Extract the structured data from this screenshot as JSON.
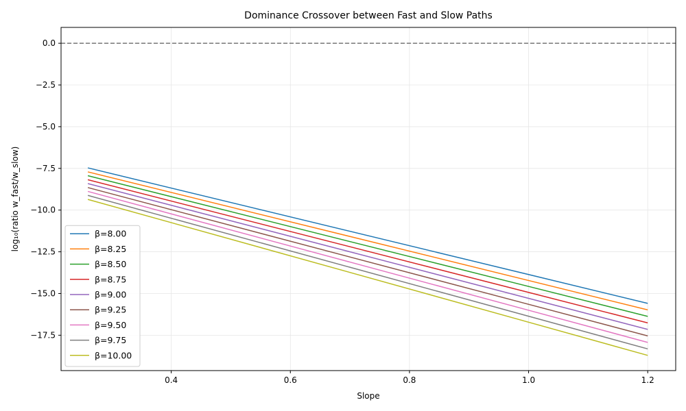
{
  "chart_data": {
    "type": "line",
    "title": "Dominance Crossover between Fast and Slow Paths",
    "xlabel": "Slope",
    "ylabel": "log₁₀(ratio w_fast/w_slow)",
    "xlim": [
      0.215,
      1.247
    ],
    "ylim": [
      -19.62,
      0.95
    ],
    "xticks": [
      0.4,
      0.6,
      0.8,
      1.0,
      1.2
    ],
    "xtick_labels": [
      "0.4",
      "0.6",
      "0.8",
      "1.0",
      "1.2"
    ],
    "yticks": [
      0.0,
      -2.5,
      -5.0,
      -7.5,
      -10.0,
      -12.5,
      -15.0,
      -17.5
    ],
    "ytick_labels": [
      "0.0",
      "−2.5",
      "−5.0",
      "−7.5",
      "−10.0",
      "−12.5",
      "−15.0",
      "−17.5"
    ],
    "grid": true,
    "legend_position": "lower-left",
    "reference_line": {
      "y": 0.0,
      "style": "dashed",
      "color": "#808080"
    },
    "series": [
      {
        "name": "β=8.00",
        "color": "#1f77b4",
        "x": [
          0.26,
          1.2
        ],
        "values": [
          -7.47,
          -15.59
        ]
      },
      {
        "name": "β=8.25",
        "color": "#ff7f0e",
        "x": [
          0.26,
          1.2
        ],
        "values": [
          -7.71,
          -15.98
        ]
      },
      {
        "name": "β=8.50",
        "color": "#2ca02c",
        "x": [
          0.26,
          1.2
        ],
        "values": [
          -7.94,
          -16.37
        ]
      },
      {
        "name": "β=8.75",
        "color": "#d62728",
        "x": [
          0.26,
          1.2
        ],
        "values": [
          -8.18,
          -16.76
        ]
      },
      {
        "name": "β=9.00",
        "color": "#9467bd",
        "x": [
          0.26,
          1.2
        ],
        "values": [
          -8.41,
          -17.15
        ]
      },
      {
        "name": "β=9.25",
        "color": "#8c564b",
        "x": [
          0.26,
          1.2
        ],
        "values": [
          -8.65,
          -17.54
        ]
      },
      {
        "name": "β=9.50",
        "color": "#e377c2",
        "x": [
          0.26,
          1.2
        ],
        "values": [
          -8.88,
          -17.93
        ]
      },
      {
        "name": "β=9.75",
        "color": "#7f7f7f",
        "x": [
          0.26,
          1.2
        ],
        "values": [
          -9.12,
          -18.32
        ]
      },
      {
        "name": "β=10.00",
        "color": "#bcbd22",
        "x": [
          0.26,
          1.2
        ],
        "values": [
          -9.36,
          -18.71
        ]
      }
    ]
  }
}
